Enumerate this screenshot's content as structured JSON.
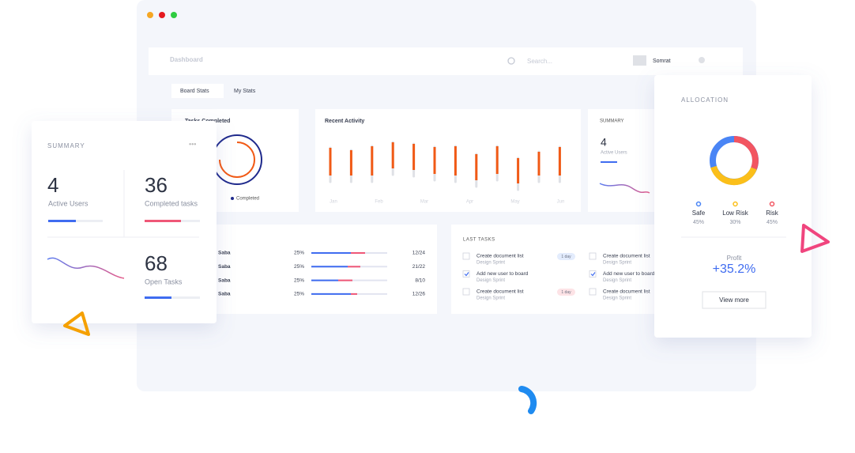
{
  "window": {
    "header": {
      "title": "Dashboard",
      "search": "Search...",
      "user": "Somrat"
    },
    "tabs": [
      "Board Stats",
      "My Stats"
    ],
    "tasks_completed": {
      "title": "Tasks Completed",
      "legend": "Completed"
    },
    "recent_activity": {
      "title": "Recent Activity",
      "months": [
        "Jan",
        "Feb",
        "Mar",
        "Apr",
        "May",
        "Jun"
      ]
    },
    "summary": {
      "title": "SUMMARY",
      "value": 4,
      "label": "Active Users"
    },
    "team": {
      "rows": [
        {
          "name": "Saba",
          "percent": "25%",
          "ratio": "12/24"
        },
        {
          "name": "Saba",
          "percent": "25%",
          "ratio": "21/22"
        },
        {
          "name": "Saba",
          "percent": "25%",
          "ratio": "8/10"
        },
        {
          "name": "Saba",
          "percent": "25%",
          "ratio": "12/26"
        }
      ]
    },
    "last_tasks": {
      "title": "LAST TASKS",
      "items": [
        {
          "title": "Create document list",
          "subtitle": "Design Sprint",
          "badge": "1 day"
        },
        {
          "title": "Add new user to board",
          "subtitle": "Design Sprint"
        },
        {
          "title": "Create document list",
          "subtitle": "Design Sprint",
          "badge": "1 day"
        }
      ],
      "items_right": [
        {
          "title": "Create document list",
          "subtitle": "Design Sprint"
        },
        {
          "title": "Add new user to board",
          "subtitle": "Design Sprint"
        },
        {
          "title": "Create document list",
          "subtitle": "Design Sprint"
        }
      ]
    }
  },
  "summary_card": {
    "title": "SUMMARY",
    "stats": [
      {
        "value": 4,
        "label": "Active Users"
      },
      {
        "value": 36,
        "label": "Completed tasks"
      },
      {
        "value": 68,
        "label": "Open Tasks"
      }
    ]
  },
  "allocation": {
    "title": "ALLOCATION",
    "legend": [
      {
        "label": "Safe",
        "value": "45%"
      },
      {
        "label": "Low Risk",
        "value": "30%"
      },
      {
        "label": "Risk",
        "value": "45%"
      }
    ],
    "profit_label": "Profit",
    "profit": "+35.2%",
    "button": "View more"
  }
}
